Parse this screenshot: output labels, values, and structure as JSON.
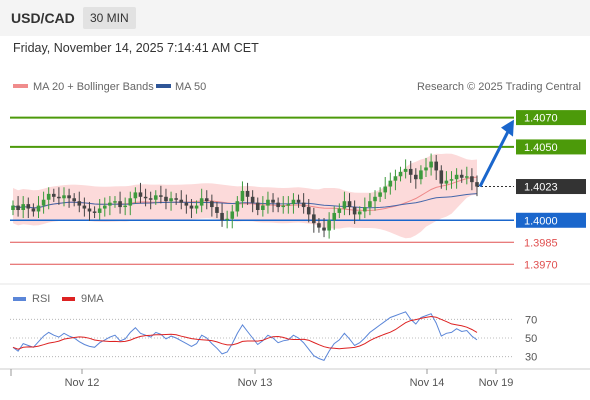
{
  "header": {
    "symbol": "USD/CAD",
    "interval": "30 MIN"
  },
  "datetime": "Friday, November 14, 2025 7:14:41 AM CET",
  "legend": {
    "ma20": "MA 20 + Bollinger Bands",
    "ma50": "MA 50",
    "credit": "Research © 2025 Trading Central"
  },
  "colors": {
    "green": "#4c9a0a",
    "blue": "#1a66cc",
    "red": "#e05050",
    "dark": "#333333",
    "up": "#3d9a3d",
    "down": "#444444",
    "band": "#fbd4d4",
    "ma20": "#ee8888",
    "ma50": "#4466aa",
    "rsi": "#5b86d8",
    "rsi_ma": "#dd2222"
  },
  "chart_data": [
    {
      "type": "candlestick",
      "ylim": [
        1.3962,
        1.4082
      ],
      "levels": [
        {
          "value": "1.4070",
          "kind": "resistance"
        },
        {
          "value": "1.4050",
          "kind": "resistance"
        },
        {
          "value": "1.4023",
          "kind": "last"
        },
        {
          "value": "1.4000",
          "kind": "support"
        },
        {
          "value": "1.3985",
          "kind": "target"
        },
        {
          "value": "1.3970",
          "kind": "target"
        }
      ],
      "x_ticks": [
        "Nov 12",
        "Nov 13",
        "Nov 14",
        "Nov 19"
      ],
      "close": [
        1.401,
        1.4007,
        1.4011,
        1.4008,
        1.4006,
        1.401,
        1.4014,
        1.4018,
        1.4016,
        1.4015,
        1.4017,
        1.4015,
        1.4013,
        1.401,
        1.4008,
        1.4006,
        1.4005,
        1.4008,
        1.401,
        1.4012,
        1.4013,
        1.4009,
        1.401,
        1.4015,
        1.4019,
        1.4016,
        1.4015,
        1.4014,
        1.4017,
        1.4016,
        1.4013,
        1.4015,
        1.4014,
        1.4012,
        1.401,
        1.4008,
        1.401,
        1.4015,
        1.4013,
        1.4009,
        1.4005,
        1.4,
        1.4001,
        1.4006,
        1.4013,
        1.402,
        1.4016,
        1.4012,
        1.4007,
        1.401,
        1.4014,
        1.4012,
        1.4009,
        1.401,
        1.4011,
        1.4014,
        1.4012,
        1.4009,
        1.4004,
        1.3998,
        1.3995,
        1.3993,
        1.4,
        1.4005,
        1.4008,
        1.4013,
        1.4009,
        1.4004,
        1.4006,
        1.4009,
        1.4013,
        1.4016,
        1.4019,
        1.4023,
        1.4027,
        1.403,
        1.4033,
        1.4035,
        1.4031,
        1.4028,
        1.4034,
        1.4036,
        1.404,
        1.4034,
        1.4025,
        1.4027,
        1.4028,
        1.4031,
        1.4029,
        1.403,
        1.4026,
        1.4023
      ],
      "rsi": {
        "ylim": [
          20,
          80
        ],
        "ticks": [
          "70",
          "50",
          "30"
        ]
      },
      "rsi_values": [
        40,
        36,
        44,
        42,
        40,
        46,
        52,
        56,
        53,
        51,
        55,
        52,
        50,
        46,
        43,
        41,
        40,
        45,
        48,
        51,
        53,
        47,
        49,
        56,
        61,
        55,
        53,
        51,
        56,
        54,
        49,
        52,
        50,
        47,
        44,
        41,
        44,
        53,
        50,
        44,
        39,
        33,
        35,
        44,
        55,
        64,
        57,
        50,
        43,
        47,
        53,
        50,
        45,
        47,
        48,
        53,
        50,
        45,
        38,
        31,
        28,
        26,
        36,
        44,
        48,
        55,
        49,
        42,
        45,
        50,
        56,
        60,
        64,
        68,
        72,
        74,
        76,
        78,
        70,
        65,
        72,
        74,
        76,
        66,
        52,
        55,
        56,
        60,
        57,
        58,
        52,
        48
      ]
    }
  ]
}
